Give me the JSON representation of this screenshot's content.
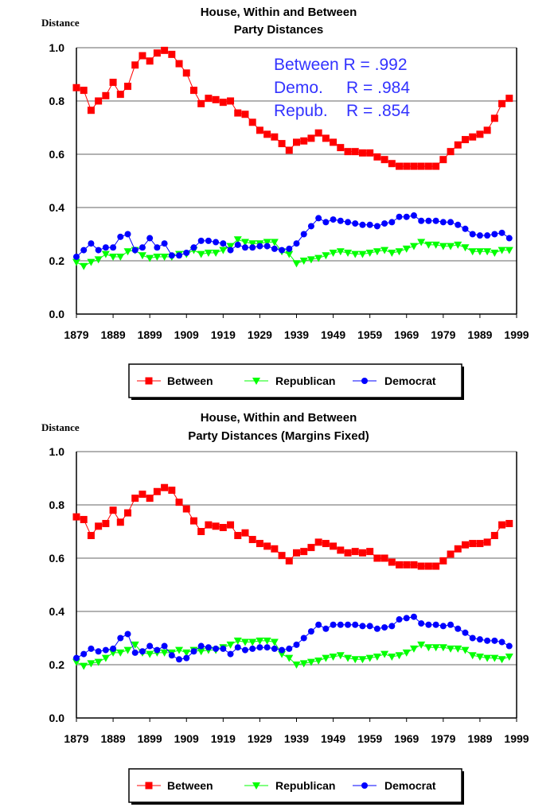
{
  "chart_data": [
    {
      "type": "line",
      "title": [
        "House, Within and Between",
        "Party Distances"
      ],
      "ylabel": "Distance",
      "xlabel": "",
      "ylim": [
        0,
        1.0
      ],
      "xlim": [
        1879,
        1999
      ],
      "yticks": [
        "0.0",
        "0.2",
        "0.4",
        "0.6",
        "0.8",
        "1.0"
      ],
      "xticks": [
        "1879",
        "1889",
        "1899",
        "1909",
        "1919",
        "1929",
        "1939",
        "1949",
        "1959",
        "1969",
        "1979",
        "1989",
        "1999"
      ],
      "grid": "horizontal",
      "legend_placement": "bottom",
      "annotations": [
        "Between R = .992",
        "Demo.     R = .984",
        "Repub.    R = .854"
      ],
      "x_start": 1879,
      "x_step": 2,
      "series": [
        {
          "name": "Between",
          "color": "#ff0000",
          "marker": "square",
          "values": [
            0.85,
            0.84,
            0.765,
            0.8,
            0.82,
            0.87,
            0.825,
            0.855,
            0.935,
            0.97,
            0.95,
            0.98,
            0.99,
            0.975,
            0.94,
            0.905,
            0.84,
            0.79,
            0.81,
            0.805,
            0.795,
            0.8,
            0.755,
            0.75,
            0.72,
            0.69,
            0.675,
            0.665,
            0.64,
            0.615,
            0.645,
            0.65,
            0.66,
            0.68,
            0.66,
            0.645,
            0.625,
            0.61,
            0.61,
            0.605,
            0.605,
            0.59,
            0.58,
            0.565,
            0.555,
            0.555,
            0.555,
            0.555,
            0.555,
            0.555,
            0.58,
            0.61,
            0.635,
            0.655,
            0.665,
            0.675,
            0.69,
            0.735,
            0.79,
            0.81
          ]
        },
        {
          "name": "Republican",
          "color": "#00ff00",
          "marker": "triangle-down",
          "values": [
            0.195,
            0.18,
            0.195,
            0.205,
            0.225,
            0.215,
            0.215,
            0.235,
            0.24,
            0.22,
            0.21,
            0.215,
            0.215,
            0.215,
            0.225,
            0.225,
            0.24,
            0.225,
            0.23,
            0.23,
            0.24,
            0.255,
            0.28,
            0.27,
            0.265,
            0.265,
            0.27,
            0.27,
            0.235,
            0.225,
            0.19,
            0.2,
            0.205,
            0.21,
            0.22,
            0.23,
            0.235,
            0.23,
            0.225,
            0.225,
            0.23,
            0.235,
            0.24,
            0.23,
            0.235,
            0.245,
            0.255,
            0.27,
            0.26,
            0.26,
            0.255,
            0.255,
            0.26,
            0.25,
            0.235,
            0.235,
            0.235,
            0.23,
            0.24,
            0.24
          ]
        },
        {
          "name": "Democrat",
          "color": "#0000ff",
          "marker": "circle",
          "values": [
            0.215,
            0.24,
            0.265,
            0.24,
            0.25,
            0.25,
            0.29,
            0.3,
            0.24,
            0.25,
            0.285,
            0.25,
            0.265,
            0.22,
            0.22,
            0.23,
            0.25,
            0.275,
            0.275,
            0.27,
            0.265,
            0.24,
            0.26,
            0.25,
            0.25,
            0.255,
            0.255,
            0.245,
            0.24,
            0.245,
            0.265,
            0.3,
            0.33,
            0.36,
            0.345,
            0.355,
            0.35,
            0.345,
            0.34,
            0.335,
            0.335,
            0.33,
            0.34,
            0.345,
            0.365,
            0.365,
            0.37,
            0.35,
            0.35,
            0.35,
            0.345,
            0.345,
            0.335,
            0.32,
            0.3,
            0.295,
            0.295,
            0.3,
            0.305,
            0.285
          ]
        }
      ]
    },
    {
      "type": "line",
      "title": [
        "House, Within and Between",
        "Party Distances (Margins Fixed)"
      ],
      "ylabel": "Distance",
      "xlabel": "",
      "ylim": [
        0,
        1.0
      ],
      "xlim": [
        1879,
        1999
      ],
      "yticks": [
        "0.0",
        "0.2",
        "0.4",
        "0.6",
        "0.8",
        "1.0"
      ],
      "xticks": [
        "1879",
        "1889",
        "1899",
        "1909",
        "1919",
        "1929",
        "1939",
        "1949",
        "1959",
        "1969",
        "1979",
        "1989",
        "1999"
      ],
      "grid": "horizontal",
      "legend_placement": "bottom",
      "annotations": [],
      "x_start": 1879,
      "x_step": 2,
      "series": [
        {
          "name": "Between",
          "color": "#ff0000",
          "marker": "square",
          "values": [
            0.755,
            0.745,
            0.685,
            0.72,
            0.73,
            0.78,
            0.735,
            0.77,
            0.825,
            0.84,
            0.825,
            0.85,
            0.865,
            0.855,
            0.81,
            0.785,
            0.74,
            0.7,
            0.725,
            0.72,
            0.715,
            0.725,
            0.685,
            0.695,
            0.67,
            0.655,
            0.645,
            0.635,
            0.61,
            0.59,
            0.62,
            0.625,
            0.64,
            0.66,
            0.655,
            0.645,
            0.63,
            0.62,
            0.625,
            0.62,
            0.625,
            0.6,
            0.6,
            0.585,
            0.575,
            0.575,
            0.575,
            0.57,
            0.57,
            0.57,
            0.59,
            0.615,
            0.635,
            0.65,
            0.655,
            0.655,
            0.66,
            0.685,
            0.725,
            0.73
          ]
        },
        {
          "name": "Republican",
          "color": "#00ff00",
          "marker": "triangle-down",
          "values": [
            0.21,
            0.195,
            0.205,
            0.21,
            0.225,
            0.245,
            0.245,
            0.255,
            0.275,
            0.245,
            0.24,
            0.245,
            0.245,
            0.245,
            0.255,
            0.245,
            0.255,
            0.25,
            0.255,
            0.255,
            0.265,
            0.275,
            0.29,
            0.285,
            0.285,
            0.29,
            0.29,
            0.285,
            0.24,
            0.225,
            0.2,
            0.205,
            0.21,
            0.215,
            0.225,
            0.23,
            0.235,
            0.225,
            0.22,
            0.22,
            0.225,
            0.23,
            0.24,
            0.23,
            0.235,
            0.245,
            0.26,
            0.275,
            0.265,
            0.265,
            0.265,
            0.26,
            0.26,
            0.255,
            0.235,
            0.23,
            0.225,
            0.225,
            0.22,
            0.23
          ]
        },
        {
          "name": "Democrat",
          "color": "#0000ff",
          "marker": "circle",
          "values": [
            0.225,
            0.24,
            0.26,
            0.25,
            0.255,
            0.26,
            0.3,
            0.315,
            0.245,
            0.25,
            0.27,
            0.255,
            0.27,
            0.235,
            0.22,
            0.225,
            0.25,
            0.27,
            0.265,
            0.26,
            0.26,
            0.24,
            0.265,
            0.255,
            0.26,
            0.265,
            0.265,
            0.26,
            0.255,
            0.26,
            0.275,
            0.3,
            0.325,
            0.35,
            0.335,
            0.35,
            0.35,
            0.35,
            0.35,
            0.345,
            0.345,
            0.335,
            0.34,
            0.345,
            0.37,
            0.375,
            0.38,
            0.355,
            0.35,
            0.35,
            0.345,
            0.35,
            0.335,
            0.32,
            0.3,
            0.295,
            0.29,
            0.29,
            0.285,
            0.27
          ]
        }
      ]
    }
  ]
}
